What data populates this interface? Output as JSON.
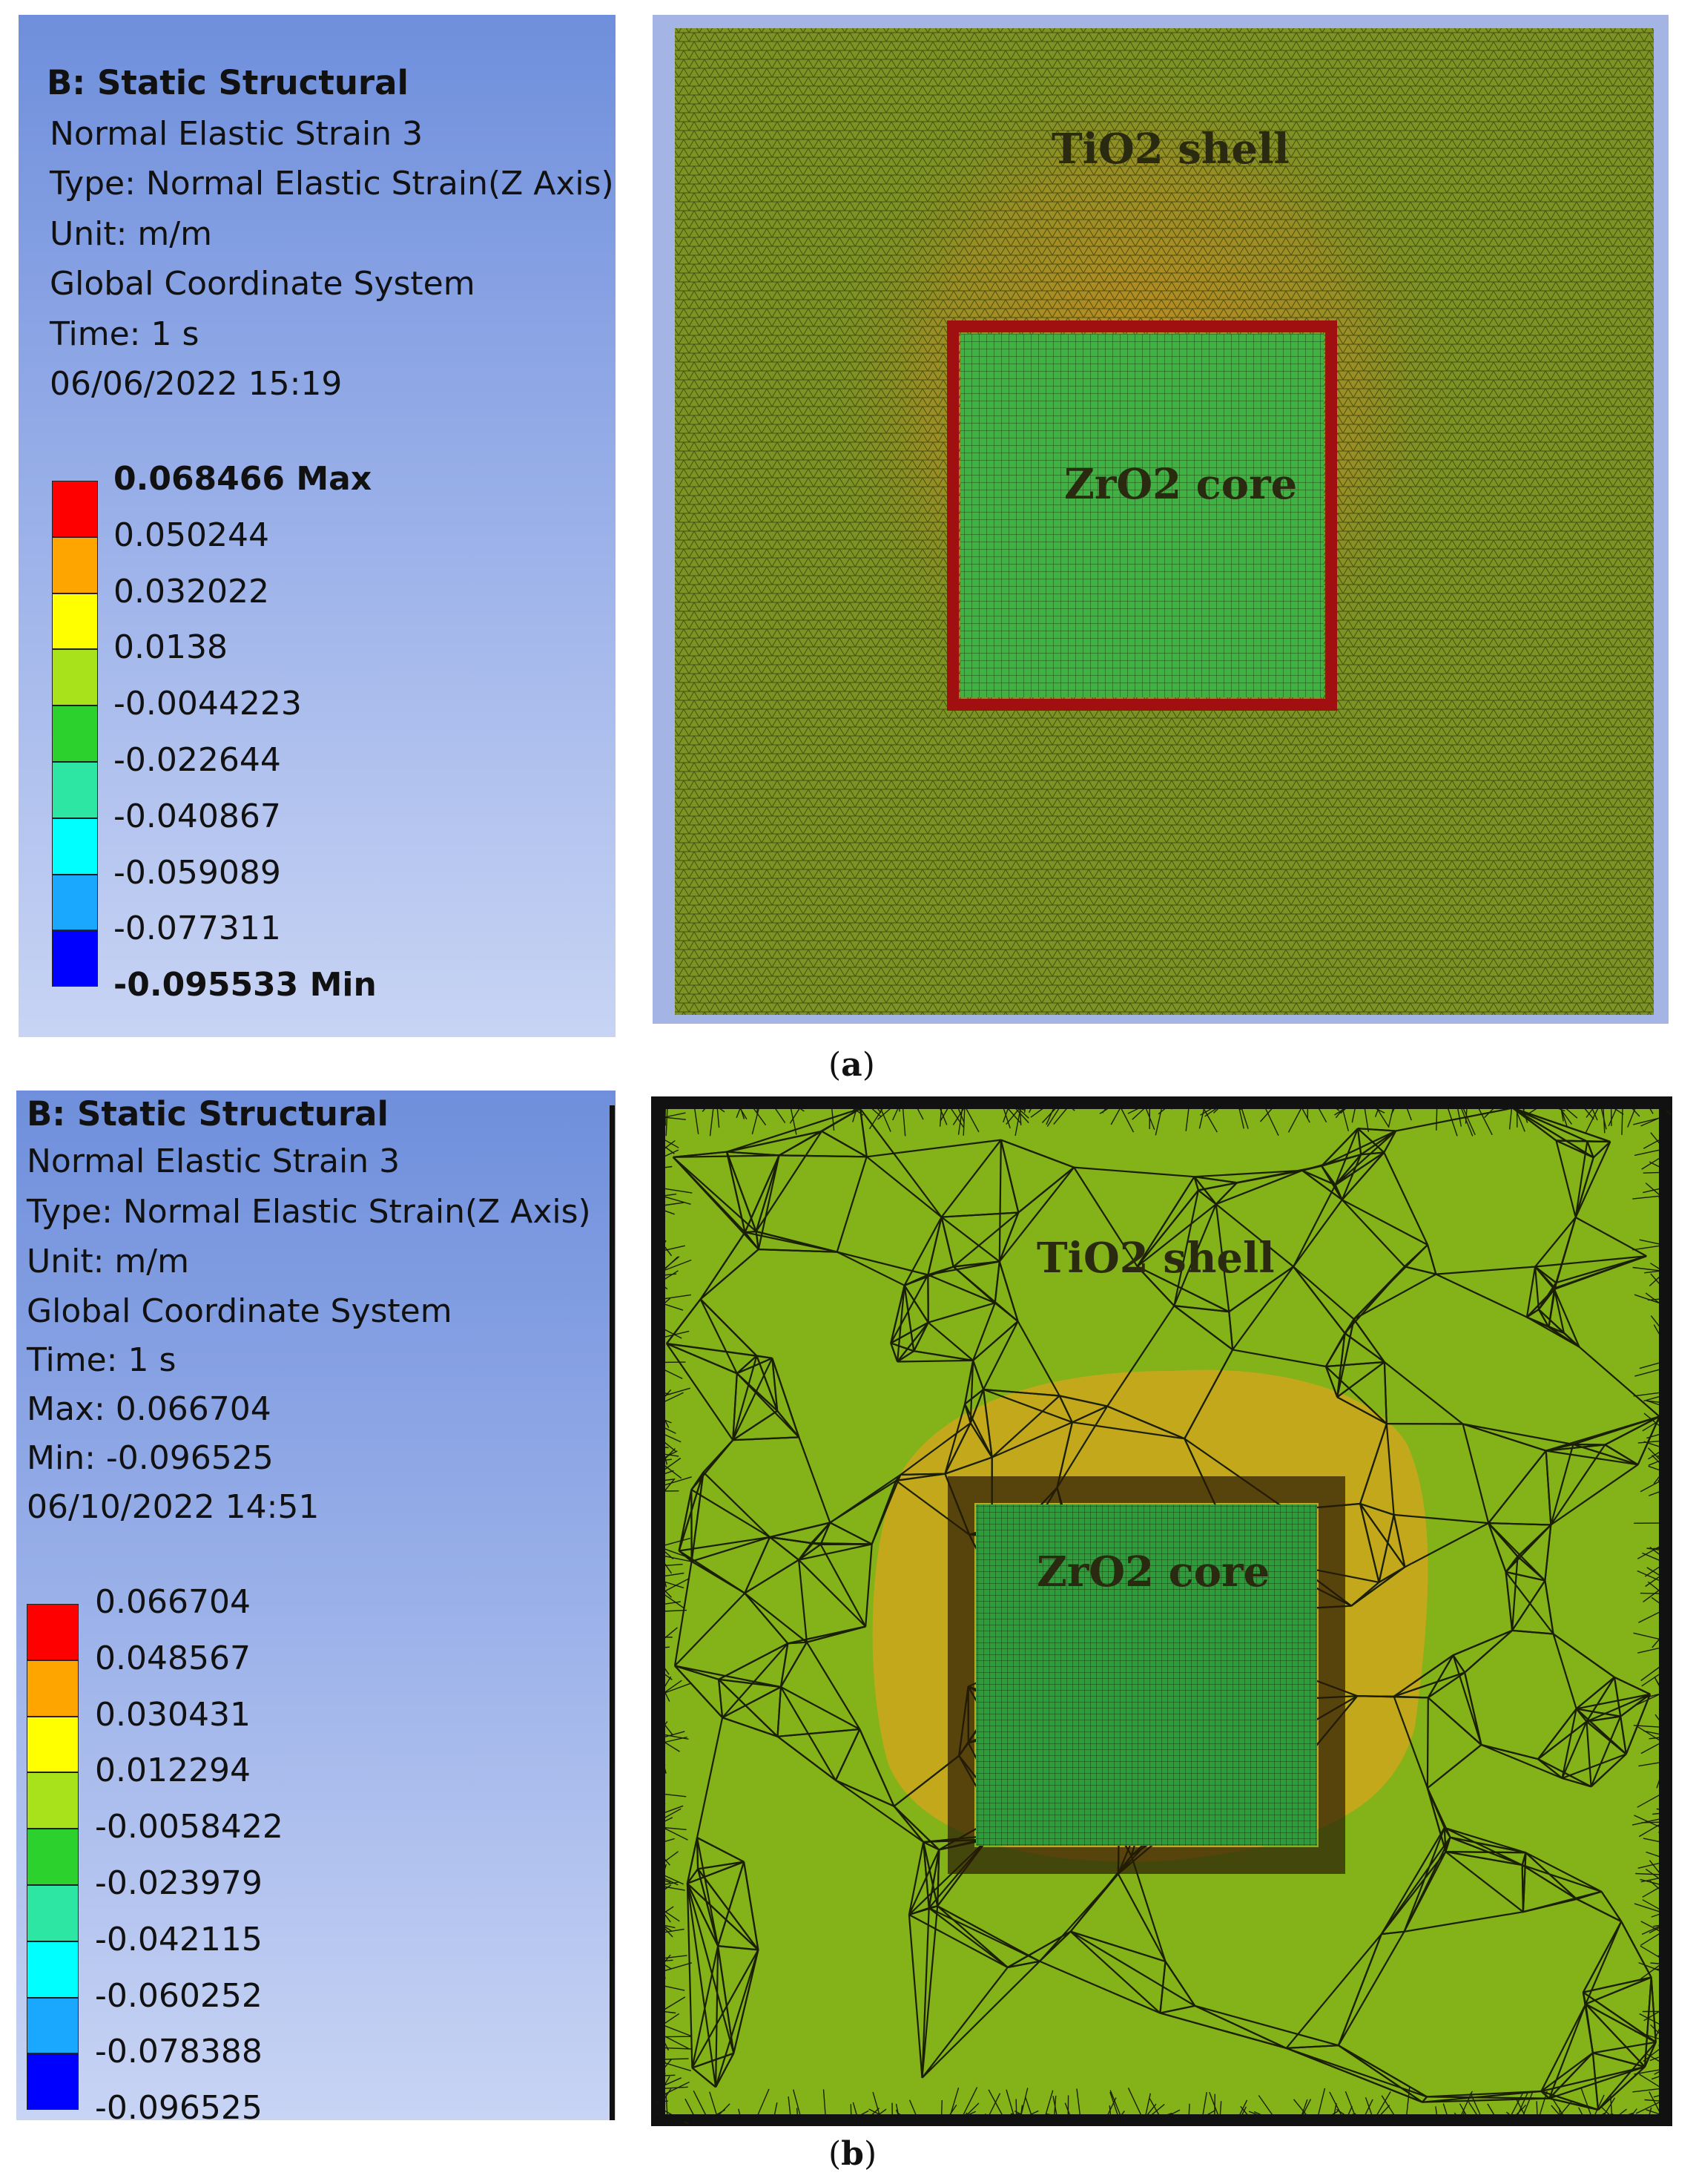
{
  "panel_a": {
    "info": [
      {
        "text": "B: Static Structural",
        "bold": true
      },
      {
        "text": "Normal Elastic Strain 3"
      },
      {
        "text": "Type: Normal Elastic Strain(Z Axis)"
      },
      {
        "text": "Unit: m/m"
      },
      {
        "text": "Global Coordinate System"
      },
      {
        "text": "Time: 1 s"
      },
      {
        "text": "06/06/2022 15:19"
      }
    ],
    "scale_labels": [
      "0.068466 Max",
      "0.050244",
      "0.032022",
      "0.0138",
      "-0.0044223",
      "-0.022644",
      "-0.040867",
      "-0.059089",
      "-0.077311",
      "-0.095533 Min"
    ],
    "scale_colors": [
      "#ff0000",
      "#ffa500",
      "#ffff00",
      "#a8e21a",
      "#2dd12d",
      "#2ee6a4",
      "#00ffff",
      "#1aa8ff",
      "#0000ff"
    ],
    "shell_label": "TiO2 shell",
    "core_label": "ZrO2 core",
    "caption_letter": "a"
  },
  "panel_b": {
    "info": [
      {
        "text": "B: Static Structural",
        "bold": true
      },
      {
        "text": "Normal Elastic Strain 3"
      },
      {
        "text": "Type: Normal Elastic Strain(Z Axis)"
      },
      {
        "text": "Unit: m/m"
      },
      {
        "text": "Global Coordinate System"
      },
      {
        "text": "Time: 1 s"
      },
      {
        "text": "Max: 0.066704"
      },
      {
        "text": "Min: -0.096525"
      },
      {
        "text": "06/10/2022 14:51"
      }
    ],
    "scale_labels": [
      "0.066704",
      "0.048567",
      "0.030431",
      "0.012294",
      "-0.0058422",
      "-0.023979",
      "-0.042115",
      "-0.060252",
      "-0.078388",
      "-0.096525"
    ],
    "scale_colors": [
      "#ff0000",
      "#ffa500",
      "#ffff00",
      "#a8e21a",
      "#2dd12d",
      "#2ee6a4",
      "#00ffff",
      "#1aa8ff",
      "#0000ff"
    ],
    "shell_label": "TiO2 shell",
    "core_label": "ZrO2 core",
    "caption_letter": "b"
  }
}
